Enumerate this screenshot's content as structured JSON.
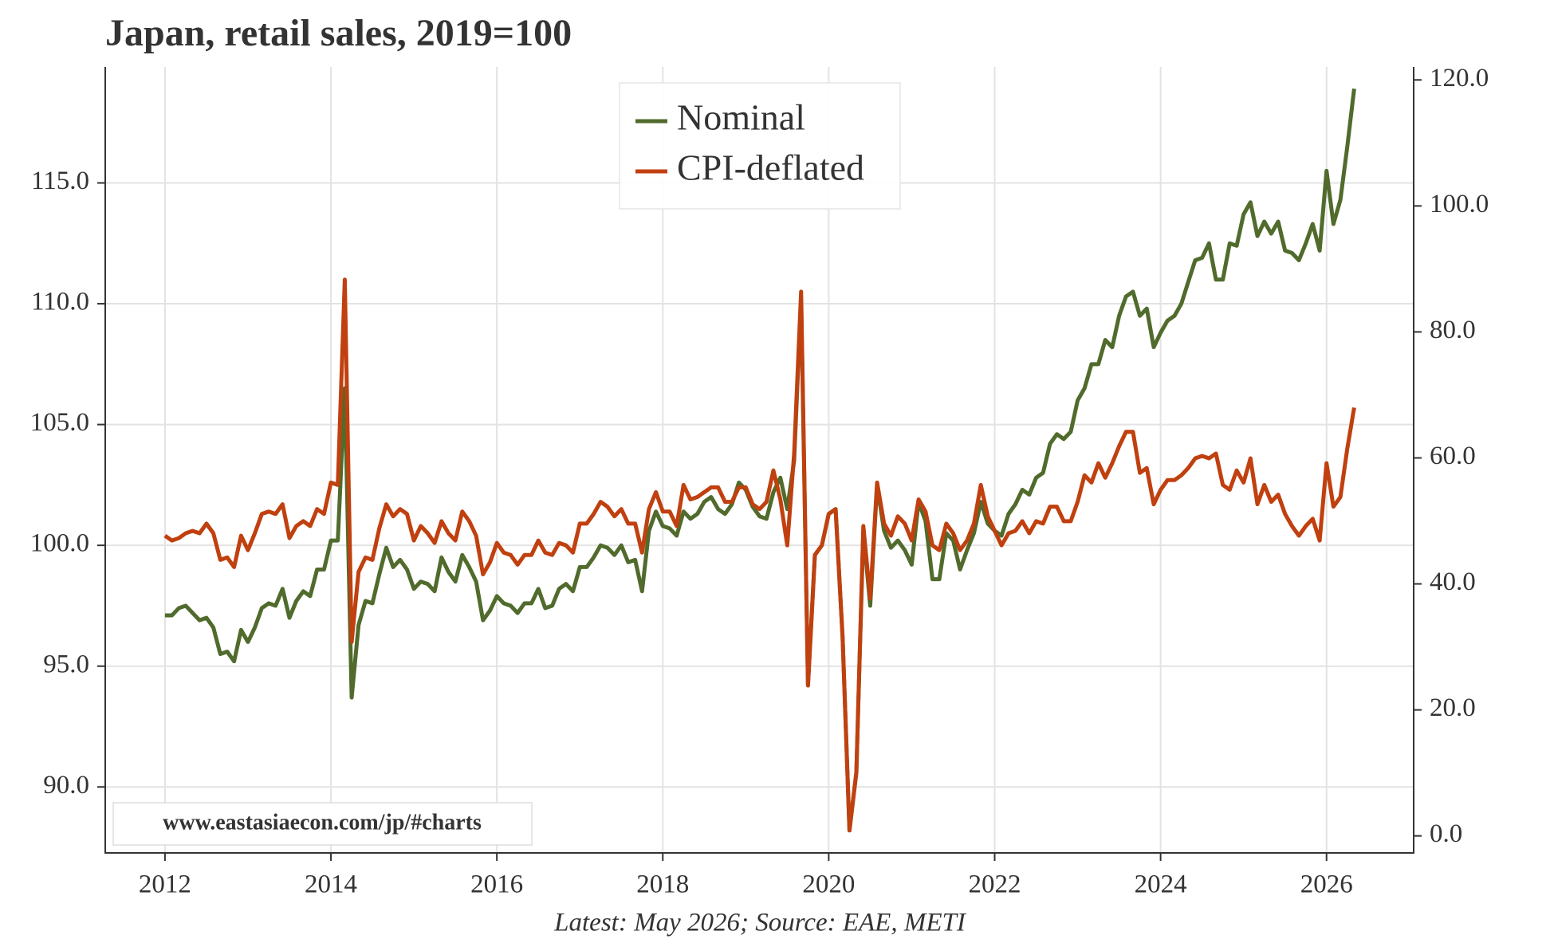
{
  "chart_data": {
    "type": "line",
    "title": "Japan, retail sales, 2019=100",
    "source": "Latest: May 2026; Source: EAE, METI",
    "watermark": "www.eastasiaecon.com/jp/#charts",
    "legend": "upper center",
    "grid": true,
    "xlim": [
      2011.28,
      2027.05
    ],
    "xticks": [
      2012,
      2014,
      2016,
      2018,
      2020,
      2022,
      2024,
      2026
    ],
    "ylim": [
      87.27,
      119.8
    ],
    "yticks": [
      {
        "value": 90,
        "label": "90.0"
      },
      {
        "value": 95,
        "label": "95.0"
      },
      {
        "value": 100,
        "label": "100.0"
      },
      {
        "value": 105,
        "label": "105.0"
      },
      {
        "value": 110,
        "label": "110.0"
      },
      {
        "value": 115,
        "label": "115.0"
      }
    ],
    "y2lim": [
      -2.7,
      122.06
    ],
    "y2ticks": [
      {
        "value": 0,
        "label": "0.0"
      },
      {
        "value": 20,
        "label": "20.0"
      },
      {
        "value": 40,
        "label": "40.0"
      },
      {
        "value": 60,
        "label": "60.0"
      },
      {
        "value": 80,
        "label": "80.0"
      },
      {
        "value": 100,
        "label": "100.0"
      },
      {
        "value": 120,
        "label": "120.0"
      }
    ],
    "x": [
      2012.0,
      2012.083,
      2012.167,
      2012.25,
      2012.333,
      2012.417,
      2012.5,
      2012.583,
      2012.667,
      2012.75,
      2012.833,
      2012.917,
      2013.0,
      2013.083,
      2013.167,
      2013.25,
      2013.333,
      2013.417,
      2013.5,
      2013.583,
      2013.667,
      2013.75,
      2013.833,
      2013.917,
      2014.0,
      2014.083,
      2014.167,
      2014.25,
      2014.333,
      2014.417,
      2014.5,
      2014.583,
      2014.667,
      2014.75,
      2014.833,
      2014.917,
      2015.0,
      2015.083,
      2015.167,
      2015.25,
      2015.333,
      2015.417,
      2015.5,
      2015.583,
      2015.667,
      2015.75,
      2015.833,
      2015.917,
      2016.0,
      2016.083,
      2016.167,
      2016.25,
      2016.333,
      2016.417,
      2016.5,
      2016.583,
      2016.667,
      2016.75,
      2016.833,
      2016.917,
      2017.0,
      2017.083,
      2017.167,
      2017.25,
      2017.333,
      2017.417,
      2017.5,
      2017.583,
      2017.667,
      2017.75,
      2017.833,
      2017.917,
      2018.0,
      2018.083,
      2018.167,
      2018.25,
      2018.333,
      2018.417,
      2018.5,
      2018.583,
      2018.667,
      2018.75,
      2018.833,
      2018.917,
      2019.0,
      2019.083,
      2019.167,
      2019.25,
      2019.333,
      2019.417,
      2019.5,
      2019.583,
      2019.667,
      2019.75,
      2019.833,
      2019.917,
      2020.0,
      2020.083,
      2020.167,
      2020.25,
      2020.333,
      2020.417,
      2020.5,
      2020.583,
      2020.667,
      2020.75,
      2020.833,
      2020.917,
      2021.0,
      2021.083,
      2021.167,
      2021.25,
      2021.333,
      2021.417,
      2021.5,
      2021.583,
      2021.667,
      2021.75,
      2021.833,
      2021.917,
      2022.0,
      2022.083,
      2022.167,
      2022.25,
      2022.333,
      2022.417,
      2022.5,
      2022.583,
      2022.667,
      2022.75,
      2022.833,
      2022.917,
      2023.0,
      2023.083,
      2023.167,
      2023.25,
      2023.333,
      2023.417,
      2023.5,
      2023.583,
      2023.667,
      2023.75,
      2023.833,
      2023.917,
      2024.0,
      2024.083,
      2024.167,
      2024.25,
      2024.333,
      2024.417,
      2024.5,
      2024.583,
      2024.667,
      2024.75,
      2024.833,
      2024.917,
      2025.0,
      2025.083,
      2025.167,
      2025.25,
      2025.333,
      2025.417,
      2025.5,
      2025.583,
      2025.667,
      2025.75,
      2025.833,
      2025.917,
      2026.0,
      2026.083,
      2026.167,
      2026.25,
      2026.333
    ],
    "series": [
      {
        "name": "Nominal",
        "color": "#506b2c",
        "values": [
          97.1,
          97.1,
          97.4,
          97.5,
          97.2,
          96.9,
          97.0,
          96.6,
          95.5,
          95.6,
          95.2,
          96.5,
          96.0,
          96.6,
          97.4,
          97.6,
          97.5,
          98.2,
          97.0,
          97.7,
          98.1,
          97.9,
          99.0,
          99.0,
          100.2,
          100.2,
          106.5,
          93.7,
          96.7,
          97.7,
          97.6,
          98.8,
          99.9,
          99.1,
          99.4,
          99.0,
          98.2,
          98.5,
          98.4,
          98.1,
          99.5,
          98.9,
          98.5,
          99.6,
          99.1,
          98.5,
          96.9,
          97.3,
          97.9,
          97.6,
          97.5,
          97.2,
          97.6,
          97.6,
          98.2,
          97.4,
          97.5,
          98.2,
          98.4,
          98.1,
          99.1,
          99.1,
          99.5,
          100.0,
          99.9,
          99.6,
          100.0,
          99.3,
          99.4,
          98.1,
          100.6,
          101.4,
          100.8,
          100.7,
          100.4,
          101.4,
          101.1,
          101.3,
          101.8,
          102.0,
          101.5,
          101.3,
          101.7,
          102.6,
          102.3,
          101.6,
          101.2,
          101.1,
          102.2,
          102.8,
          101.5,
          103.5,
          110.2,
          94.2,
          99.6,
          100.0,
          101.3,
          101.5,
          96.2,
          88.2,
          90.6,
          100.6,
          97.5,
          102.5,
          100.6,
          99.9,
          100.2,
          99.8,
          99.2,
          101.8,
          101.0,
          98.6,
          98.6,
          100.5,
          100.2,
          99.0,
          99.8,
          100.5,
          101.8,
          100.9,
          100.6,
          100.4,
          101.3,
          101.7,
          102.3,
          102.1,
          102.8,
          103.0,
          104.2,
          104.6,
          104.4,
          104.7,
          106.0,
          106.5,
          107.5,
          107.5,
          108.5,
          108.2,
          109.5,
          110.3,
          110.5,
          109.5,
          109.8,
          108.2,
          108.8,
          109.3,
          109.5,
          110.0,
          110.9,
          111.8,
          111.9,
          112.5,
          111.0,
          111.0,
          112.5,
          112.4,
          113.7,
          114.2,
          112.8,
          113.4,
          112.9,
          113.4,
          112.2,
          112.1,
          111.8,
          112.5,
          113.3,
          112.2,
          115.5,
          113.3,
          114.3,
          116.5,
          118.9
        ]
      },
      {
        "name": "CPI-deflated",
        "color": "#c0400f",
        "values": [
          100.4,
          100.2,
          100.3,
          100.5,
          100.6,
          100.5,
          100.9,
          100.5,
          99.4,
          99.5,
          99.1,
          100.4,
          99.8,
          100.5,
          101.3,
          101.4,
          101.3,
          101.7,
          100.3,
          100.8,
          101.0,
          100.8,
          101.5,
          101.3,
          102.6,
          102.5,
          111.0,
          96.0,
          98.9,
          99.5,
          99.4,
          100.7,
          101.7,
          101.2,
          101.5,
          101.3,
          100.2,
          100.8,
          100.5,
          100.1,
          101.0,
          100.5,
          100.2,
          101.4,
          101.0,
          100.4,
          98.8,
          99.3,
          100.1,
          99.7,
          99.6,
          99.2,
          99.6,
          99.6,
          100.2,
          99.7,
          99.6,
          100.1,
          100.0,
          99.7,
          100.9,
          100.9,
          101.3,
          101.8,
          101.6,
          101.2,
          101.5,
          100.9,
          100.9,
          99.7,
          101.5,
          102.2,
          101.4,
          101.4,
          100.8,
          102.5,
          101.9,
          102.0,
          102.2,
          102.4,
          102.4,
          101.8,
          101.8,
          102.4,
          102.4,
          101.7,
          101.5,
          101.8,
          103.1,
          101.9,
          100.0,
          103.8,
          110.5,
          94.2,
          99.6,
          100.0,
          101.3,
          101.5,
          96.2,
          88.2,
          90.6,
          100.8,
          97.8,
          102.6,
          100.9,
          100.4,
          101.2,
          100.9,
          100.2,
          101.9,
          101.4,
          100.0,
          99.8,
          100.9,
          100.5,
          99.8,
          100.2,
          100.9,
          102.5,
          101.2,
          100.6,
          100.0,
          100.5,
          100.6,
          101.0,
          100.5,
          101.0,
          100.9,
          101.6,
          101.6,
          101.0,
          101.0,
          101.8,
          102.9,
          102.6,
          103.4,
          102.8,
          103.4,
          104.1,
          104.7,
          104.7,
          103.0,
          103.2,
          101.7,
          102.3,
          102.7,
          102.7,
          102.9,
          103.2,
          103.6,
          103.7,
          103.6,
          103.8,
          102.5,
          102.3,
          103.1,
          102.6,
          103.6,
          101.7,
          102.5,
          101.8,
          102.1,
          101.3,
          100.8,
          100.4,
          100.8,
          101.1,
          100.2,
          103.4,
          101.6,
          102.0,
          104.0,
          105.7
        ]
      }
    ]
  }
}
